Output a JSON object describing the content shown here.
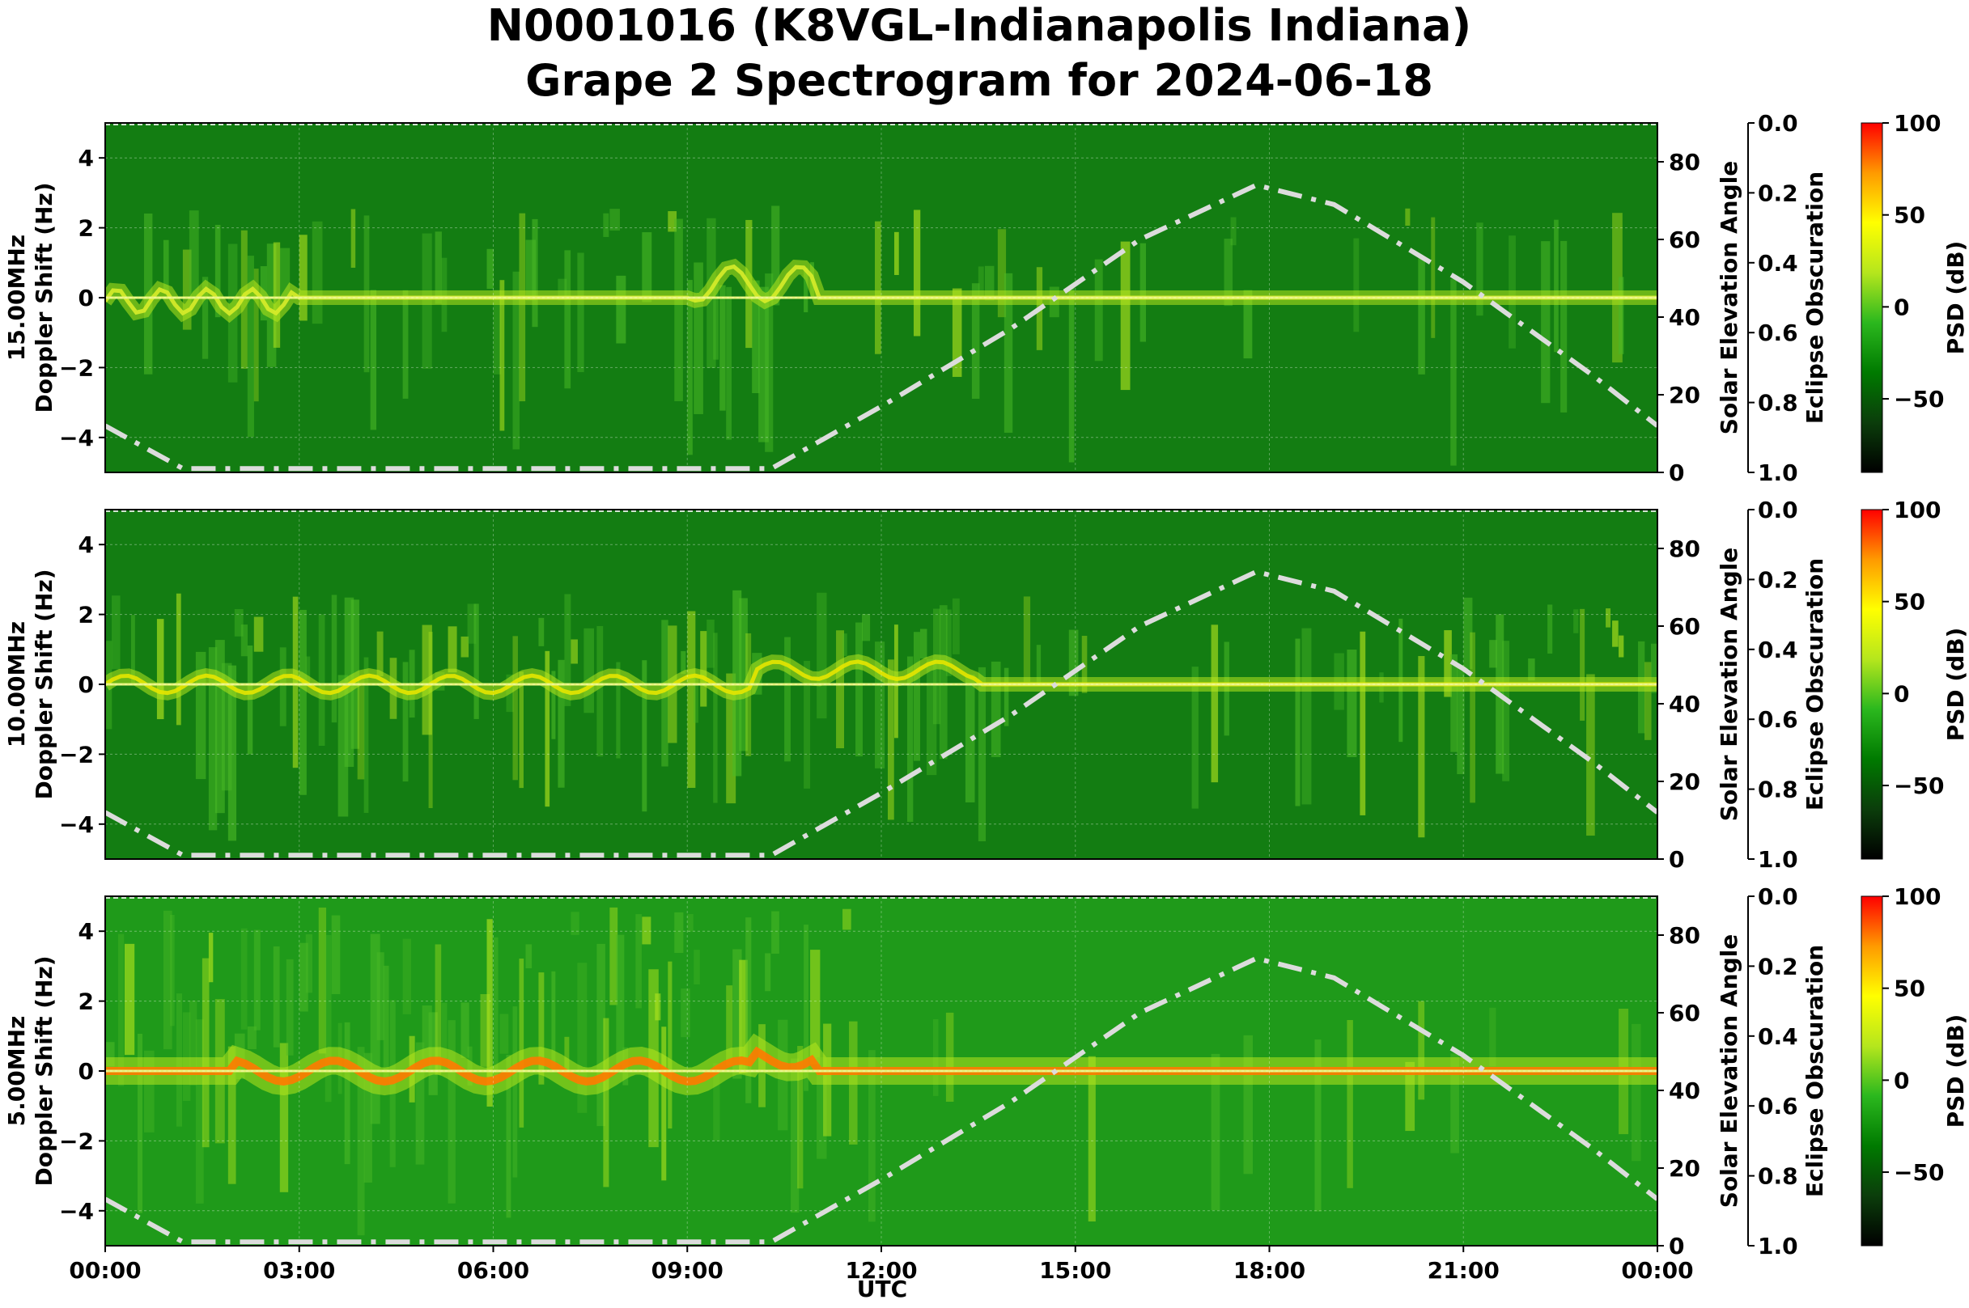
{
  "title_line1": "N0001016 (K8VGL-Indianapolis Indiana)",
  "title_line2": "Grape 2 Spectrogram for 2024-06-18",
  "xlabel": "UTC",
  "x_tick_labels": [
    "00:00",
    "03:00",
    "06:00",
    "09:00",
    "12:00",
    "15:00",
    "18:00",
    "21:00",
    "00:00"
  ],
  "colormap": [
    "#000000",
    "#0b3d0b",
    "#007a00",
    "#2bb81e",
    "#b5e61d",
    "#ffff00",
    "#ff9a00",
    "#ff0000"
  ],
  "chart_data": [
    {
      "type": "heatmap",
      "frequency_label": "15.00MHz",
      "ylabel": "15.00MHz\nDoppler Shift (Hz)",
      "ylim": [
        -5,
        5
      ],
      "y_ticks": [
        -4,
        -2,
        0,
        2,
        4
      ],
      "x_range_hours": [
        0,
        24
      ],
      "right_axis": {
        "label": "Solar Elevation Angle",
        "ylim": [
          0,
          90
        ],
        "ticks": [
          0,
          20,
          40,
          60,
          80
        ]
      },
      "eclipse_axis": {
        "label": "Eclipse Obscuration",
        "ylim": [
          1.0,
          0.0
        ],
        "ticks": [
          "0.0",
          "0.2",
          "0.4",
          "0.6",
          "0.8",
          "1.0"
        ]
      },
      "colorbar": {
        "label": "PSD (dB)",
        "range": [
          -90,
          100
        ],
        "ticks": [
          100,
          50,
          0,
          -50
        ]
      },
      "solar_elevation": {
        "x_hours": [
          0,
          1.2,
          10.3,
          12,
          14,
          16,
          17.8,
          19,
          21,
          23,
          24
        ],
        "y_deg": [
          12,
          1,
          1,
          17,
          37,
          60,
          74,
          69,
          49,
          25,
          12
        ]
      },
      "description_bands": {
        "signal_peak_doppler": 0
      }
    },
    {
      "type": "heatmap",
      "frequency_label": "10.00MHz",
      "ylabel": "10.00MHz\nDoppler Shift (Hz)",
      "ylim": [
        -5,
        5
      ],
      "y_ticks": [
        -4,
        -2,
        0,
        2,
        4
      ],
      "x_range_hours": [
        0,
        24
      ],
      "right_axis": {
        "label": "Solar Elevation Angle",
        "ylim": [
          0,
          90
        ],
        "ticks": [
          0,
          20,
          40,
          60,
          80
        ]
      },
      "eclipse_axis": {
        "label": "Eclipse Obscuration",
        "ylim": [
          1.0,
          0.0
        ],
        "ticks": [
          "0.0",
          "0.2",
          "0.4",
          "0.6",
          "0.8",
          "1.0"
        ]
      },
      "colorbar": {
        "label": "PSD (dB)",
        "range": [
          -90,
          100
        ],
        "ticks": [
          100,
          50,
          0,
          -50
        ]
      },
      "solar_elevation": {
        "x_hours": [
          0,
          1.2,
          10.3,
          12,
          14,
          16,
          17.8,
          19,
          21,
          23,
          24
        ],
        "y_deg": [
          12,
          1,
          1,
          17,
          37,
          60,
          74,
          69,
          49,
          25,
          12
        ]
      },
      "description_bands": {
        "signal_peak_doppler": 0
      }
    },
    {
      "type": "heatmap",
      "frequency_label": "5.00MHz",
      "ylabel": "5.00MHz\nDoppler Shift (Hz)",
      "ylim": [
        -5,
        5
      ],
      "y_ticks": [
        -4,
        -2,
        0,
        2,
        4
      ],
      "x_range_hours": [
        0,
        24
      ],
      "right_axis": {
        "label": "Solar Elevation Angle",
        "ylim": [
          0,
          90
        ],
        "ticks": [
          0,
          20,
          40,
          60,
          80
        ]
      },
      "eclipse_axis": {
        "label": "Eclipse Obscuration",
        "ylim": [
          1.0,
          0.0
        ],
        "ticks": [
          "0.0",
          "0.2",
          "0.4",
          "0.6",
          "0.8",
          "1.0"
        ]
      },
      "colorbar": {
        "label": "PSD (dB)",
        "range": [
          -90,
          100
        ],
        "ticks": [
          100,
          50,
          0,
          -50
        ]
      },
      "solar_elevation": {
        "x_hours": [
          0,
          1.2,
          10.3,
          12,
          14,
          16,
          17.8,
          19,
          21,
          23,
          24
        ],
        "y_deg": [
          12,
          1,
          1,
          17,
          37,
          60,
          74,
          69,
          49,
          25,
          12
        ]
      },
      "description_bands": {
        "signal_peak_doppler": 0
      }
    }
  ]
}
